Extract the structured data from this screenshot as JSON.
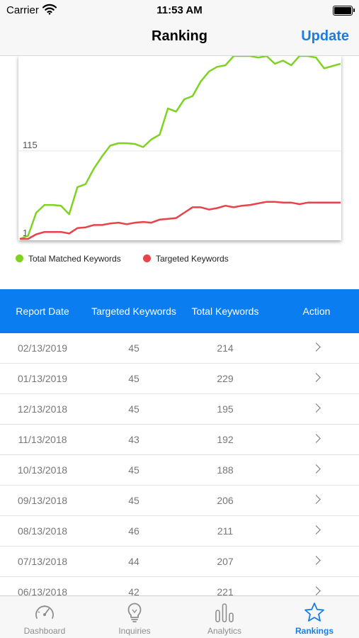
{
  "status_bar": {
    "carrier": "Carrier",
    "time": "11:53 AM"
  },
  "nav": {
    "title": "Ranking",
    "update_label": "Update"
  },
  "chart_data": {
    "type": "line",
    "y_tick_labels": [
      "115",
      "1"
    ],
    "y_ticks": [
      115,
      1
    ],
    "ylim": [
      1,
      238
    ],
    "grid": true,
    "legend_position": "bottom-left",
    "x": [
      1,
      2,
      3,
      4,
      5,
      6,
      7,
      8,
      9,
      10,
      11,
      12,
      13,
      14,
      15,
      16,
      17,
      18,
      19,
      20,
      21,
      22,
      23,
      24,
      25,
      26,
      27,
      28,
      29,
      30,
      31,
      32,
      33,
      34,
      35,
      36,
      37,
      38,
      39,
      40
    ],
    "series": [
      {
        "name": "Total Matched Keywords",
        "color": "#7ed321",
        "values": [
          1,
          5,
          35,
          45,
          45,
          44,
          33,
          68,
          72,
          92,
          108,
          122,
          125,
          125,
          124,
          120,
          130,
          136,
          170,
          166,
          182,
          186,
          205,
          218,
          224,
          226,
          238,
          238,
          238,
          236,
          238,
          228,
          232,
          226,
          238,
          238,
          236,
          222,
          225,
          228
        ]
      },
      {
        "name": "Targeted Keywords",
        "color": "#e8424a",
        "values": [
          1,
          1,
          7,
          10,
          10,
          10,
          8,
          15,
          16,
          19,
          19,
          21,
          22,
          20,
          22,
          23,
          22,
          26,
          27,
          28,
          35,
          42,
          42,
          39,
          41,
          44,
          42,
          44,
          45,
          47,
          49,
          49,
          48,
          48,
          46,
          48,
          48,
          48,
          48,
          48
        ]
      }
    ]
  },
  "table": {
    "headers": [
      "Report Date",
      "Targeted Keywords",
      "Total Keywords",
      "Action"
    ],
    "rows": [
      {
        "date": "02/13/2019",
        "targeted": "45",
        "total": "214"
      },
      {
        "date": "01/13/2019",
        "targeted": "45",
        "total": "229"
      },
      {
        "date": "12/13/2018",
        "targeted": "45",
        "total": "195"
      },
      {
        "date": "11/13/2018",
        "targeted": "43",
        "total": "192"
      },
      {
        "date": "10/13/2018",
        "targeted": "45",
        "total": "188"
      },
      {
        "date": "09/13/2018",
        "targeted": "45",
        "total": "206"
      },
      {
        "date": "08/13/2018",
        "targeted": "46",
        "total": "211"
      },
      {
        "date": "07/13/2018",
        "targeted": "44",
        "total": "207"
      },
      {
        "date": "06/13/2018",
        "targeted": "42",
        "total": "221"
      }
    ]
  },
  "tabs": [
    {
      "label": "Dashboard",
      "icon": "speedometer-icon"
    },
    {
      "label": "Inquiries",
      "icon": "lightbulb-icon"
    },
    {
      "label": "Analytics",
      "icon": "bar-chart-icon"
    },
    {
      "label": "Rankings",
      "icon": "star-icon",
      "active": true
    }
  ]
}
